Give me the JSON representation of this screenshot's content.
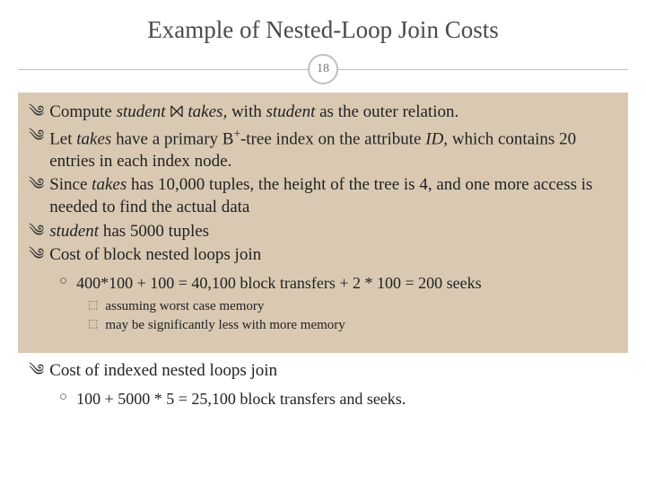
{
  "title": "Example of Nested-Loop Join Costs",
  "page_number": "18",
  "colors": {
    "background": "#ffffff",
    "content_box": "#d9c9b3",
    "rule": "#bfbfbf",
    "title_text": "#4a4a4a",
    "body_text": "#222222"
  },
  "bullets": [
    {
      "prefix": "Compute ",
      "em1": "student",
      "mid": " ⨝ ",
      "em2": "takes,",
      "suffix": " with ",
      "em3": "student",
      "tail": " as the outer relation."
    },
    {
      "prefix": "Let ",
      "em1": "takes",
      "mid": " have a primary B",
      "sup": "+",
      "rest": "-tree index on the attribute ",
      "em2": "ID,",
      "tail": " which contains 20 entries in each index node."
    },
    {
      "prefix": "Since ",
      "em1": "takes",
      "tail": " has 10,000 tuples, the height of the tree is 4, and one more access is needed to find the actual data"
    },
    {
      "em1": "student",
      "tail": " has 5000 tuples"
    },
    {
      "text": "Cost of block nested loops join"
    }
  ],
  "sub1": "400*100 + 100 =  40,100 block transfers + 2 * 100 = 200 seeks",
  "subsub": [
    "assuming worst case memory",
    "may be significantly less with more memory"
  ],
  "bullet_after": "Cost of indexed nested loops join",
  "sub2": "100 + 5000 * 5 = 25,100  block transfers and seeks."
}
